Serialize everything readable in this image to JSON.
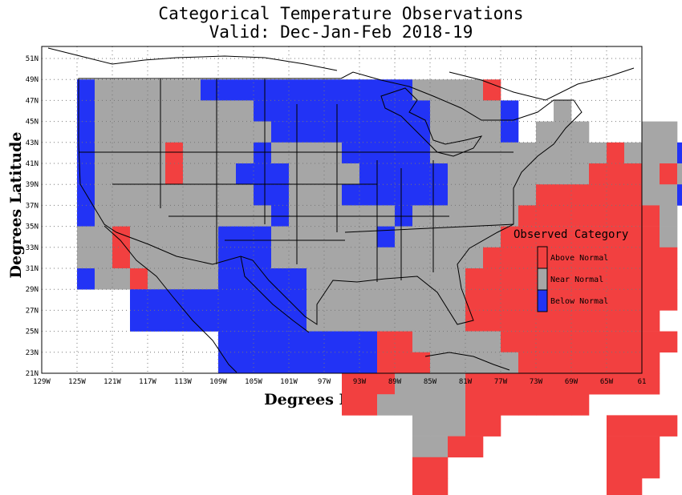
{
  "title_line1": "Categorical Temperature Observations",
  "title_line2": "Valid: Dec-Jan-Feb 2018-19",
  "xlabel": "Degrees Longitude",
  "ylabel": "Degrees Latitude",
  "x_ticks": [
    "129W",
    "125W",
    "121W",
    "117W",
    "113W",
    "109W",
    "105W",
    "101W",
    "97W",
    "93W",
    "89W",
    "85W",
    "81W",
    "77W",
    "73W",
    "69W",
    "65W",
    "61"
  ],
  "y_ticks": [
    "51N",
    "49N",
    "47N",
    "45N",
    "43N",
    "41N",
    "39N",
    "37N",
    "35N",
    "33N",
    "31N",
    "29N",
    "27N",
    "25N",
    "23N",
    "21N"
  ],
  "legend": {
    "title": "Observed Category",
    "items": [
      {
        "label": "Above Normal",
        "color": "#f24040"
      },
      {
        "label": "Near Normal",
        "color": "#a6a6a6"
      },
      {
        "label": "Below Normal",
        "color": "#2233f5"
      }
    ]
  },
  "chart_data": {
    "type": "heatmap",
    "lon_range": [
      -129,
      -61
    ],
    "lat_range": [
      21,
      52
    ],
    "cell_size_deg": 2,
    "colors": {
      "A": "#f24040",
      "N": "#a6a6a6",
      "B": "#2233f5"
    },
    "grid_origin": {
      "west_edge_lon": -125,
      "north_edge_lat": 49
    },
    "rows": [
      "BNNNNNNBBBBBBBBBBBBNNNNA..........",
      "BNNNNNNNNNBBBBBBBBBBNNNNB..N......",
      "BNNNNNNNNNNBBBBBBBBBNNNNB.NNN...NN",
      "BNNNNANNNNBNNNNBBBBBNNNNNNNNNNANNNBB",
      "BNNNNANNNBBBNNNNBBBBBNNNNNNNNAAANANB",
      "BNNNNNNNNNBBNNNBBBBBBNNNNNAAAAAANNB",
      "BNNNNNNNNNNBNNNNNNBNNNNNNAAAAAAAAN",
      "NNANNNNNBBBNNNNNNBNNNNNNAAAAAAAAAN.",
      "NNANNNNNBBBNNNNNNNNNNNNAAAAAAAAAAA",
      "BNNANNNNBBBBBNNNNNNNNNAAAAAAAAAAAA",
      "...BBBBBBBBBBNNNNNNNNNAAAAAAAAAAAA",
      "...BBBBBBBBBBNNNNNNNNNAAAAAAAAAAA",
      "........BBBBBBBBBAANNNNNAAAAAAAAAA",
      "........BBBBBBBBBAAANNNNNAAAAAAAA",
      "...............AAANNNNAAAAAAAAAAA",
      "...............AANNNNNAAAAAAA.....",
      "...................NNNAA......AAAA",
      "...................NNAA.......AAA",
      "...................AA.........AAA",
      "...................AA.........AA"
    ]
  }
}
